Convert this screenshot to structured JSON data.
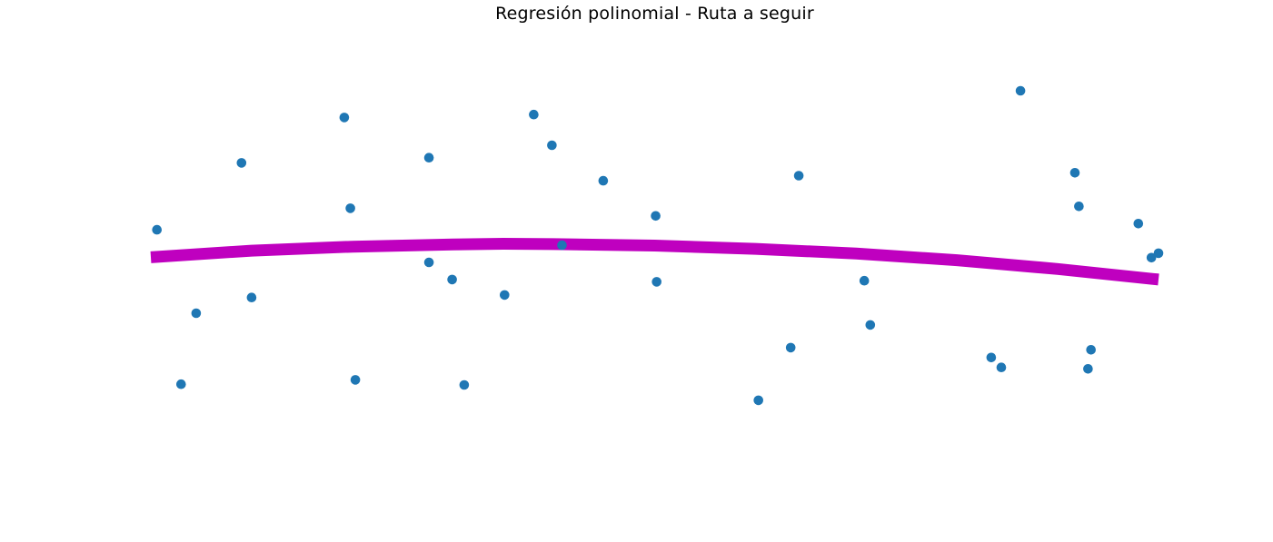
{
  "chart_data": {
    "type": "scatter",
    "title": "Regresión polinomial - Ruta a seguir",
    "xlabel": "",
    "ylabel": "",
    "axes_visible": false,
    "grid": false,
    "xlim": [
      0,
      1
    ],
    "ylim": [
      0,
      1
    ],
    "series": [
      {
        "kind": "scatter",
        "color": "#1f77b4",
        "points": [
          {
            "x": 0.006,
            "y": 0.62
          },
          {
            "x": 0.03,
            "y": 0.198
          },
          {
            "x": 0.045,
            "y": 0.392
          },
          {
            "x": 0.09,
            "y": 0.803
          },
          {
            "x": 0.1,
            "y": 0.435
          },
          {
            "x": 0.192,
            "y": 0.927
          },
          {
            "x": 0.198,
            "y": 0.679
          },
          {
            "x": 0.203,
            "y": 0.21
          },
          {
            "x": 0.276,
            "y": 0.531
          },
          {
            "x": 0.276,
            "y": 0.817
          },
          {
            "x": 0.299,
            "y": 0.484
          },
          {
            "x": 0.311,
            "y": 0.196
          },
          {
            "x": 0.351,
            "y": 0.442
          },
          {
            "x": 0.38,
            "y": 0.935
          },
          {
            "x": 0.398,
            "y": 0.851
          },
          {
            "x": 0.408,
            "y": 0.578
          },
          {
            "x": 0.449,
            "y": 0.754
          },
          {
            "x": 0.501,
            "y": 0.658
          },
          {
            "x": 0.502,
            "y": 0.478
          },
          {
            "x": 0.603,
            "y": 0.154
          },
          {
            "x": 0.635,
            "y": 0.298
          },
          {
            "x": 0.643,
            "y": 0.768
          },
          {
            "x": 0.708,
            "y": 0.481
          },
          {
            "x": 0.714,
            "y": 0.36
          },
          {
            "x": 0.834,
            "y": 0.271
          },
          {
            "x": 0.844,
            "y": 0.244
          },
          {
            "x": 0.863,
            "y": 1.0
          },
          {
            "x": 0.917,
            "y": 0.776
          },
          {
            "x": 0.921,
            "y": 0.684
          },
          {
            "x": 0.93,
            "y": 0.24
          },
          {
            "x": 0.933,
            "y": 0.292
          },
          {
            "x": 0.98,
            "y": 0.637
          },
          {
            "x": 0.993,
            "y": 0.544
          },
          {
            "x": 1.0,
            "y": 0.556
          }
        ]
      },
      {
        "kind": "line",
        "color": "#bf00bf",
        "points": [
          {
            "x": 0.0,
            "y": 0.545
          },
          {
            "x": 0.1,
            "y": 0.563
          },
          {
            "x": 0.2,
            "y": 0.574
          },
          {
            "x": 0.3,
            "y": 0.58
          },
          {
            "x": 0.35,
            "y": 0.582
          },
          {
            "x": 0.4,
            "y": 0.581
          },
          {
            "x": 0.5,
            "y": 0.577
          },
          {
            "x": 0.6,
            "y": 0.568
          },
          {
            "x": 0.7,
            "y": 0.555
          },
          {
            "x": 0.8,
            "y": 0.537
          },
          {
            "x": 0.9,
            "y": 0.513
          },
          {
            "x": 1.0,
            "y": 0.484
          }
        ]
      }
    ]
  }
}
